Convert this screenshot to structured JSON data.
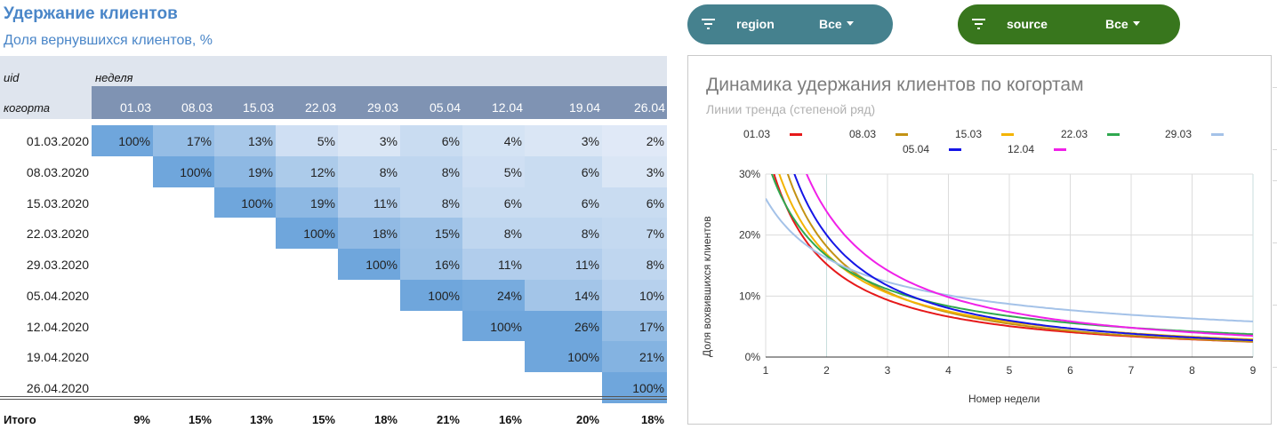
{
  "report": {
    "title": "Удержание клиентов",
    "subtitle": "Доля вернувшихся клиентов, %"
  },
  "filters": [
    {
      "name": "region",
      "value": "Все",
      "color": "#45818e",
      "icon": "filter-icon"
    },
    {
      "name": "source",
      "value": "Все",
      "color": "#38761d",
      "icon": "filter-icon"
    }
  ],
  "table": {
    "uid_label": "uid",
    "week_label": "неделя",
    "cohort_label": "когорта",
    "weeks": [
      "01.03",
      "08.03",
      "15.03",
      "22.03",
      "29.03",
      "05.04",
      "12.04",
      "19.04",
      "26.04"
    ],
    "rows": [
      {
        "cohort": "01.03.2020",
        "values": [
          "100%",
          "17%",
          "13%",
          "5%",
          "3%",
          "6%",
          "4%",
          "3%",
          "2%"
        ]
      },
      {
        "cohort": "08.03.2020",
        "values": [
          "",
          "100%",
          "19%",
          "12%",
          "8%",
          "8%",
          "5%",
          "6%",
          "3%"
        ]
      },
      {
        "cohort": "15.03.2020",
        "values": [
          "",
          "",
          "100%",
          "19%",
          "11%",
          "8%",
          "6%",
          "6%",
          "6%"
        ]
      },
      {
        "cohort": "22.03.2020",
        "values": [
          "",
          "",
          "",
          "100%",
          "18%",
          "15%",
          "8%",
          "8%",
          "7%"
        ]
      },
      {
        "cohort": "29.03.2020",
        "values": [
          "",
          "",
          "",
          "",
          "100%",
          "16%",
          "11%",
          "11%",
          "8%"
        ]
      },
      {
        "cohort": "05.04.2020",
        "values": [
          "",
          "",
          "",
          "",
          "",
          "100%",
          "24%",
          "14%",
          "10%"
        ]
      },
      {
        "cohort": "12.04.2020",
        "values": [
          "",
          "",
          "",
          "",
          "",
          "",
          "100%",
          "26%",
          "17%"
        ]
      },
      {
        "cohort": "19.04.2020",
        "values": [
          "",
          "",
          "",
          "",
          "",
          "",
          "",
          "100%",
          "21%"
        ]
      },
      {
        "cohort": "26.04.2020",
        "values": [
          "",
          "",
          "",
          "",
          "",
          "",
          "",
          "",
          "100%"
        ]
      }
    ],
    "total_label": "Итого",
    "totals": [
      "9%",
      "15%",
      "13%",
      "15%",
      "18%",
      "21%",
      "16%",
      "20%",
      "18%"
    ]
  },
  "chart_data": {
    "type": "line",
    "title": "Динамика удержания клиентов по когортам",
    "subtitle": "Линии тренда (степеной ряд)",
    "xlabel": "Номер недели",
    "ylabel": "Доля вохвившихся клиентов",
    "xlim": [
      1,
      9
    ],
    "ylim": [
      0,
      0.3
    ],
    "x_ticks": [
      "1",
      "2",
      "3",
      "4",
      "5",
      "6",
      "7",
      "8",
      "9"
    ],
    "y_ticks": [
      "0%",
      "10%",
      "20%",
      "30%"
    ],
    "grid": true,
    "legend_position": "top",
    "series": [
      {
        "name": "01.03",
        "color": "#e6191a",
        "a": 0.35,
        "b": 1.2
      },
      {
        "name": "08.03",
        "color": "#c39214",
        "a": 0.45,
        "b": 1.31
      },
      {
        "name": "15.03",
        "color": "#f4b400",
        "a": 0.38,
        "b": 1.17
      },
      {
        "name": "22.03",
        "color": "#2fa84f",
        "a": 0.33,
        "b": 0.99
      },
      {
        "name": "29.03",
        "color": "#a4c2e8",
        "a": 0.26,
        "b": 0.68
      },
      {
        "name": "05.04",
        "color": "#1515e6",
        "a": 0.5,
        "b": 1.32
      },
      {
        "name": "12.04",
        "color": "#f020e8",
        "a": 0.58,
        "b": 1.28
      }
    ]
  }
}
